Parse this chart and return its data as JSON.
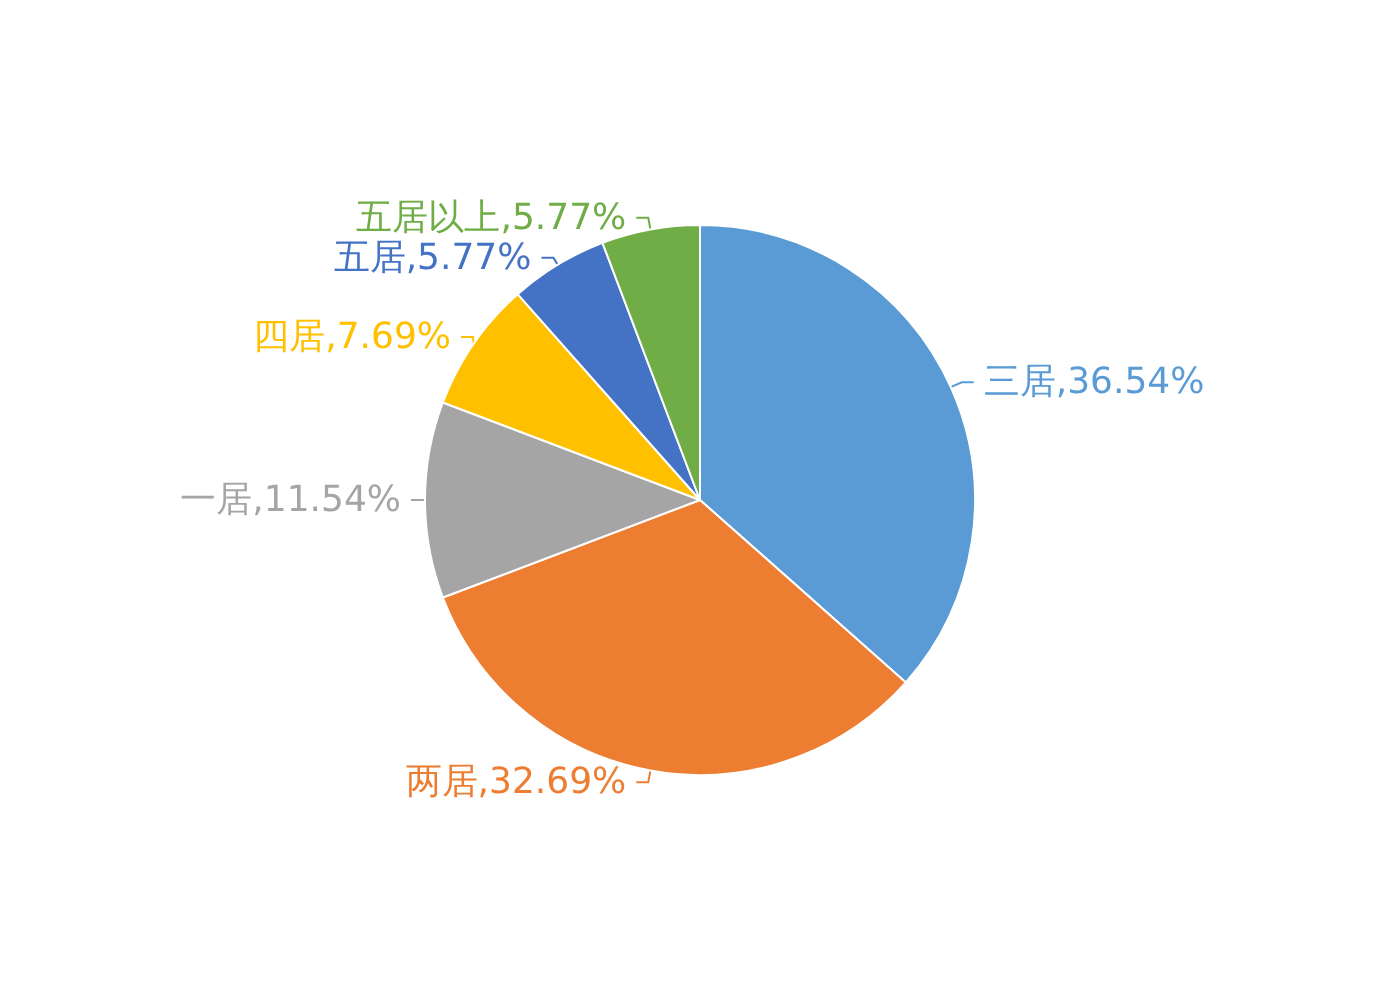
{
  "chart_data": {
    "type": "pie",
    "categories": [
      "三居",
      "两居",
      "一居",
      "四居",
      "五居",
      "五居以上"
    ],
    "values": [
      36.54,
      32.69,
      11.54,
      7.69,
      5.77,
      5.77
    ],
    "colors": [
      "#5b9bd5",
      "#ed7d31",
      "#a5a5a5",
      "#ffc000",
      "#4472c4",
      "#70ad47"
    ],
    "value_labels": [
      ",36.54%",
      ",32.69%",
      ",11.54%",
      ",7.69%",
      ",5.77%",
      ",5.77%"
    ],
    "legend": false
  }
}
